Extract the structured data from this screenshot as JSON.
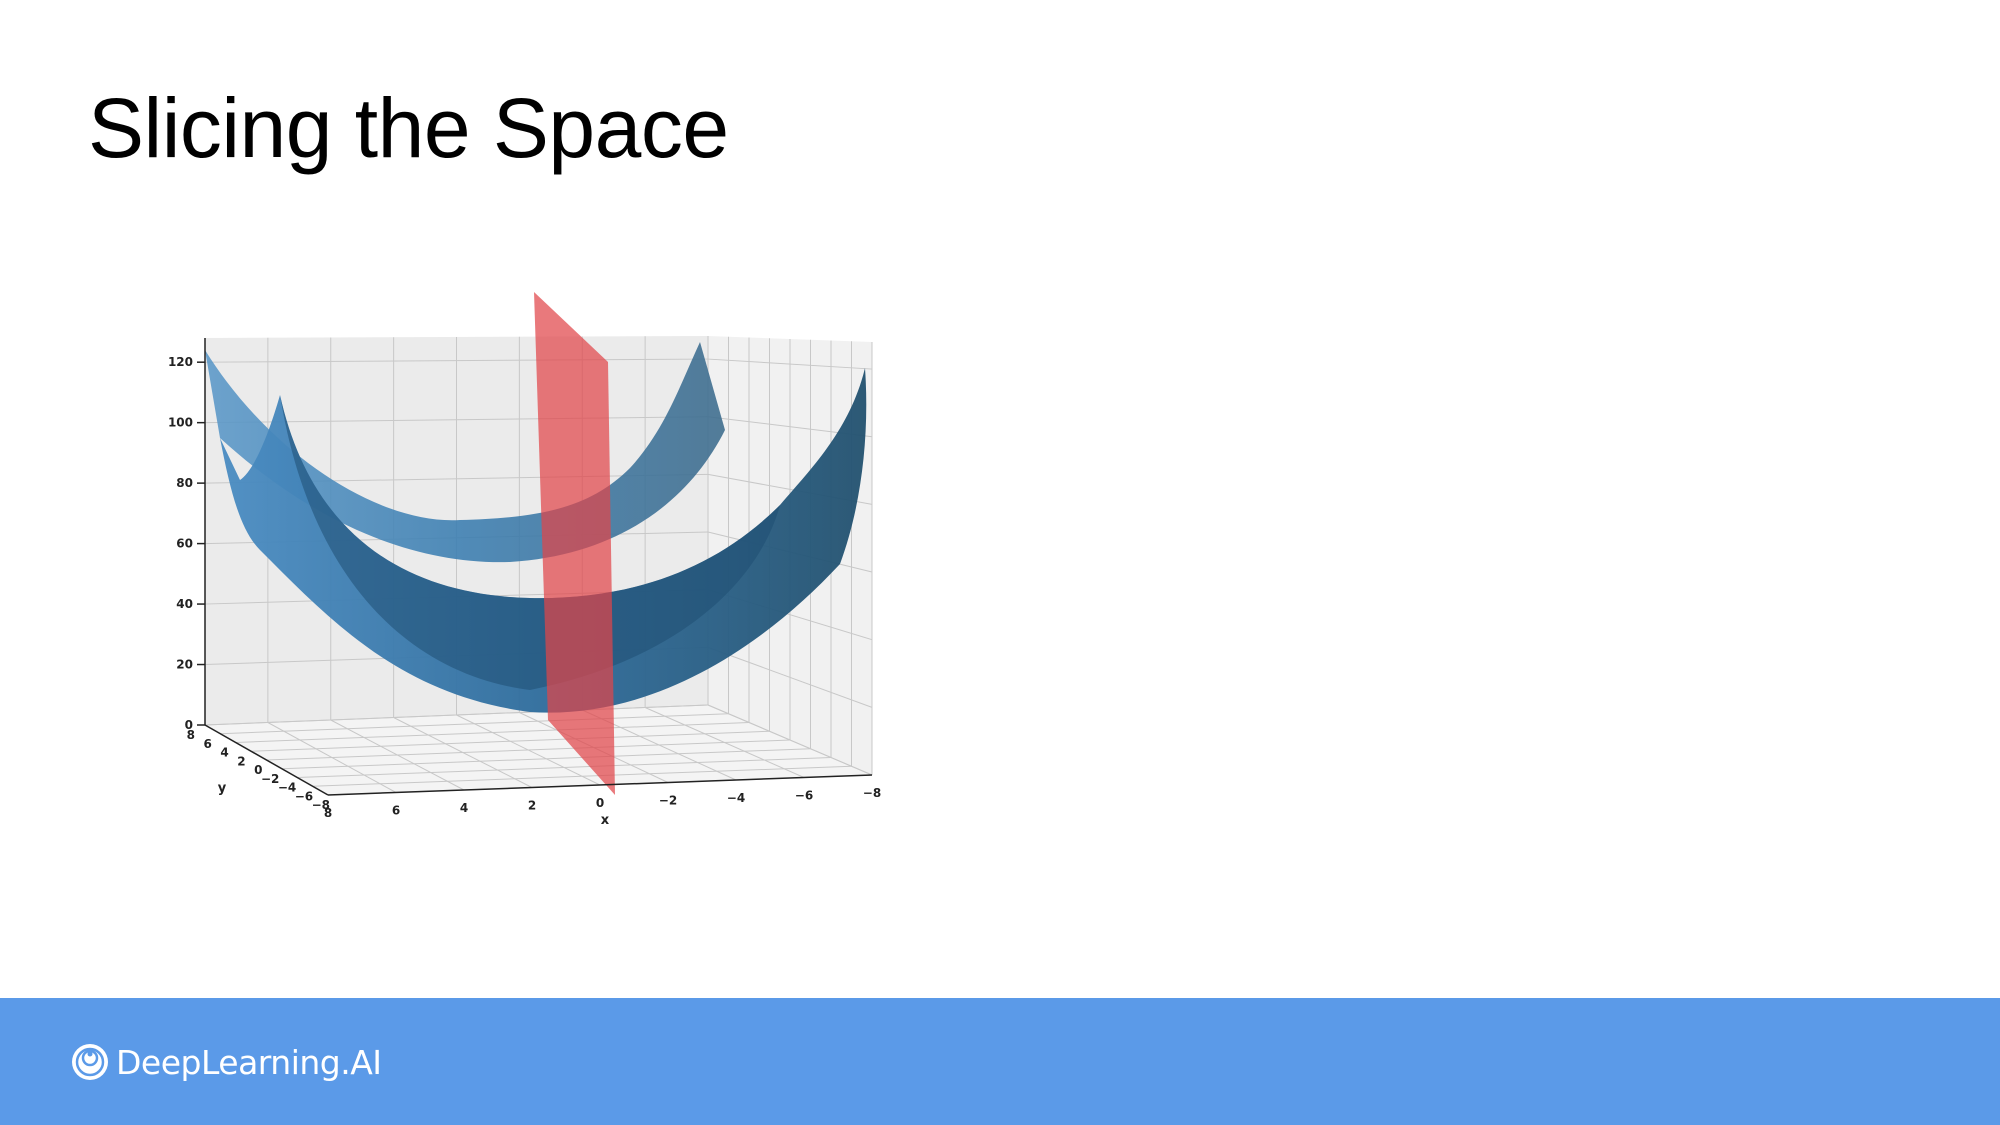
{
  "slide": {
    "title": "Slicing the Space"
  },
  "footer": {
    "brand_name": "DeepLearning.AI",
    "brand_icon": "deeplearning-logo-icon",
    "background_color": "#5b9ae8"
  },
  "chart_data": {
    "type": "surface3d",
    "function": "z = x^2 + y^2",
    "xlabel": "x",
    "ylabel": "y",
    "zlabel": "",
    "x_ticks": [
      "8",
      "6",
      "4",
      "2",
      "0",
      "−2",
      "−4",
      "−6",
      "−8"
    ],
    "y_ticks": [
      "8",
      "6",
      "4",
      "2",
      "0",
      "−2",
      "−4",
      "−6",
      "−8"
    ],
    "z_ticks": [
      "0",
      "20",
      "40",
      "60",
      "80",
      "100",
      "120"
    ],
    "xlim": [
      -8,
      8
    ],
    "ylim": [
      -8,
      8
    ],
    "zlim": [
      0,
      128
    ],
    "grid": true,
    "surface_color": "#2b6fa3",
    "slice_plane": {
      "orientation": "vertical",
      "color": "#e0454a"
    }
  }
}
